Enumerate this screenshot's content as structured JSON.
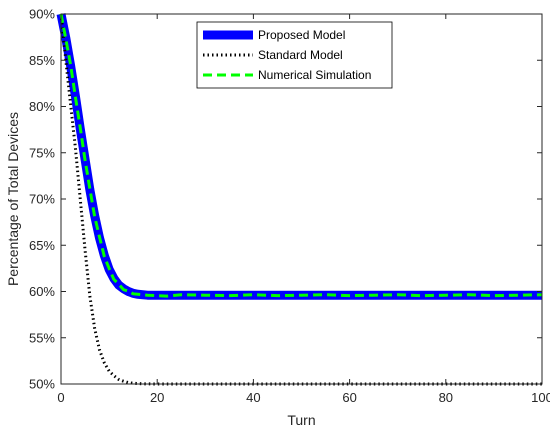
{
  "chart_data": {
    "type": "line",
    "xlabel": "Turn",
    "ylabel": "Percentage of Total Devices",
    "xlim": [
      0,
      100
    ],
    "ylim": [
      50,
      90
    ],
    "xticks": [
      "0",
      "20",
      "40",
      "60",
      "80",
      "100"
    ],
    "yticks": [
      "50%",
      "55%",
      "60%",
      "65%",
      "70%",
      "75%",
      "80%",
      "85%",
      "90%"
    ],
    "grid": false,
    "legend_position": "top-center",
    "series": [
      {
        "name": "Proposed Model",
        "color": "#0000ff",
        "style": "solid-thick",
        "x": [
          0,
          1,
          2,
          3,
          4,
          5,
          6,
          7,
          8,
          9,
          10,
          11,
          12,
          13,
          14,
          15,
          16,
          17,
          18,
          20,
          25,
          30,
          40,
          50,
          60,
          70,
          80,
          90,
          100
        ],
        "y": [
          90,
          87.4,
          84.4,
          81.1,
          77.6,
          74.3,
          71.0,
          68.2,
          65.8,
          63.9,
          62.4,
          61.4,
          60.7,
          60.3,
          60.0,
          59.8,
          59.7,
          59.65,
          59.6,
          59.6,
          59.6,
          59.6,
          59.6,
          59.6,
          59.6,
          59.6,
          59.6,
          59.6,
          59.6
        ]
      },
      {
        "name": "Standard Model",
        "color": "#000000",
        "style": "dotted",
        "x": [
          0,
          1,
          2,
          3,
          4,
          5,
          6,
          7,
          8,
          9,
          10,
          11,
          12,
          13,
          14,
          15,
          17,
          20,
          30,
          40,
          50,
          60,
          70,
          80,
          90,
          100
        ],
        "y": [
          90,
          85.0,
          80.2,
          75.5,
          70.0,
          64.5,
          59.5,
          56.0,
          53.7,
          52.3,
          51.4,
          50.9,
          50.5,
          50.3,
          50.15,
          50.08,
          50.02,
          50.0,
          50.0,
          50.0,
          50.0,
          50.0,
          50.0,
          50.0,
          50.0,
          50.0
        ]
      },
      {
        "name": "Numerical Simulation",
        "color": "#00ff00",
        "style": "dashed",
        "x": [
          0,
          1,
          2,
          3,
          4,
          5,
          6,
          7,
          8,
          9,
          10,
          11,
          12,
          13,
          14,
          15,
          16,
          18,
          20,
          22,
          25,
          30,
          35,
          40,
          45,
          50,
          55,
          60,
          65,
          70,
          75,
          80,
          85,
          90,
          95,
          100
        ],
        "y": [
          90,
          87.3,
          84.5,
          81.0,
          77.7,
          74.2,
          71.1,
          68.1,
          65.9,
          63.8,
          62.5,
          61.3,
          60.8,
          60.2,
          60.05,
          59.75,
          59.7,
          59.6,
          59.55,
          59.5,
          59.65,
          59.6,
          59.55,
          59.65,
          59.55,
          59.6,
          59.65,
          59.55,
          59.6,
          59.65,
          59.55,
          59.6,
          59.65,
          59.55,
          59.6,
          59.65
        ]
      }
    ]
  }
}
